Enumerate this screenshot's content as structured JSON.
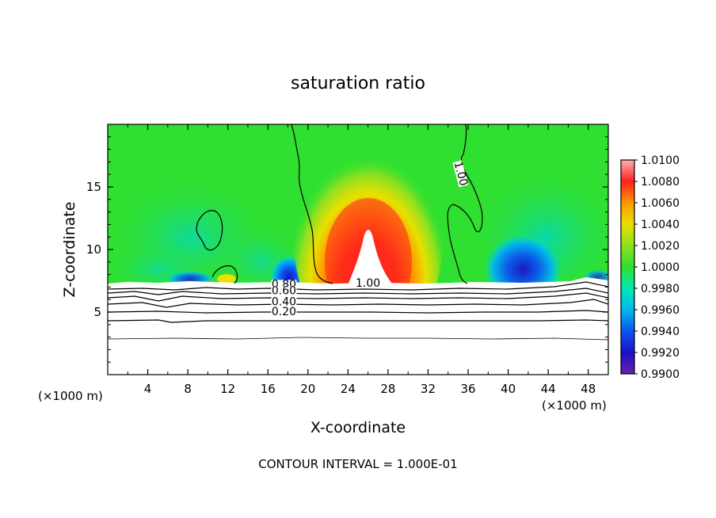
{
  "chart_data": {
    "type": "heatmap",
    "title": "saturation ratio",
    "xlabel": "X-coordinate",
    "ylabel": "Z-coordinate",
    "x_unit_left": "(×1000 m)",
    "x_unit_right": "(×1000 m)",
    "xlim": [
      0,
      50
    ],
    "ylim": [
      0,
      20
    ],
    "x_ticks": [
      4,
      8,
      12,
      16,
      20,
      24,
      28,
      32,
      36,
      40,
      44,
      48
    ],
    "y_ticks": [
      5,
      10,
      15
    ],
    "footer": "CONTOUR INTERVAL = 1.000E-01",
    "colorbar": {
      "levels": [
        0.99,
        0.992,
        0.994,
        0.996,
        0.998,
        1.0,
        1.002,
        1.004,
        1.006,
        1.008,
        1.01
      ],
      "labels": [
        "0.9900",
        "0.9920",
        "0.9940",
        "0.9960",
        "0.9980",
        "1.0000",
        "1.0020",
        "1.0040",
        "1.0060",
        "1.0080",
        "1.0100"
      ],
      "colors": [
        "#6a1fa8",
        "#1a10c8",
        "#0b55f0",
        "#00b8ee",
        "#00e8b0",
        "#30e030",
        "#8ee020",
        "#e8e000",
        "#ff9800",
        "#ff2020",
        "#ffb0b0"
      ]
    },
    "contour_labels": [
      {
        "text": "1.00",
        "x": 26,
        "z": 7.1
      },
      {
        "text": "1.00",
        "x": 35,
        "z": 16.0
      },
      {
        "text": "0.80",
        "x": 17.6,
        "z": 7.0
      },
      {
        "text": "0.60",
        "x": 17.6,
        "z": 6.5
      },
      {
        "text": "0.40",
        "x": 17.6,
        "z": 5.6
      },
      {
        "text": "0.20",
        "x": 17.6,
        "z": 4.8
      }
    ],
    "features": [
      {
        "name": "supersaturated plume",
        "x_center": 26,
        "z_top": 15.5,
        "max_value": 1.01
      },
      {
        "name": "subsaturated pocket",
        "x_center": 18,
        "z": 8.0,
        "min_value": 0.992
      },
      {
        "name": "subsaturated pocket",
        "x_center": 41,
        "z": 8.5,
        "min_value": 0.992
      }
    ]
  }
}
